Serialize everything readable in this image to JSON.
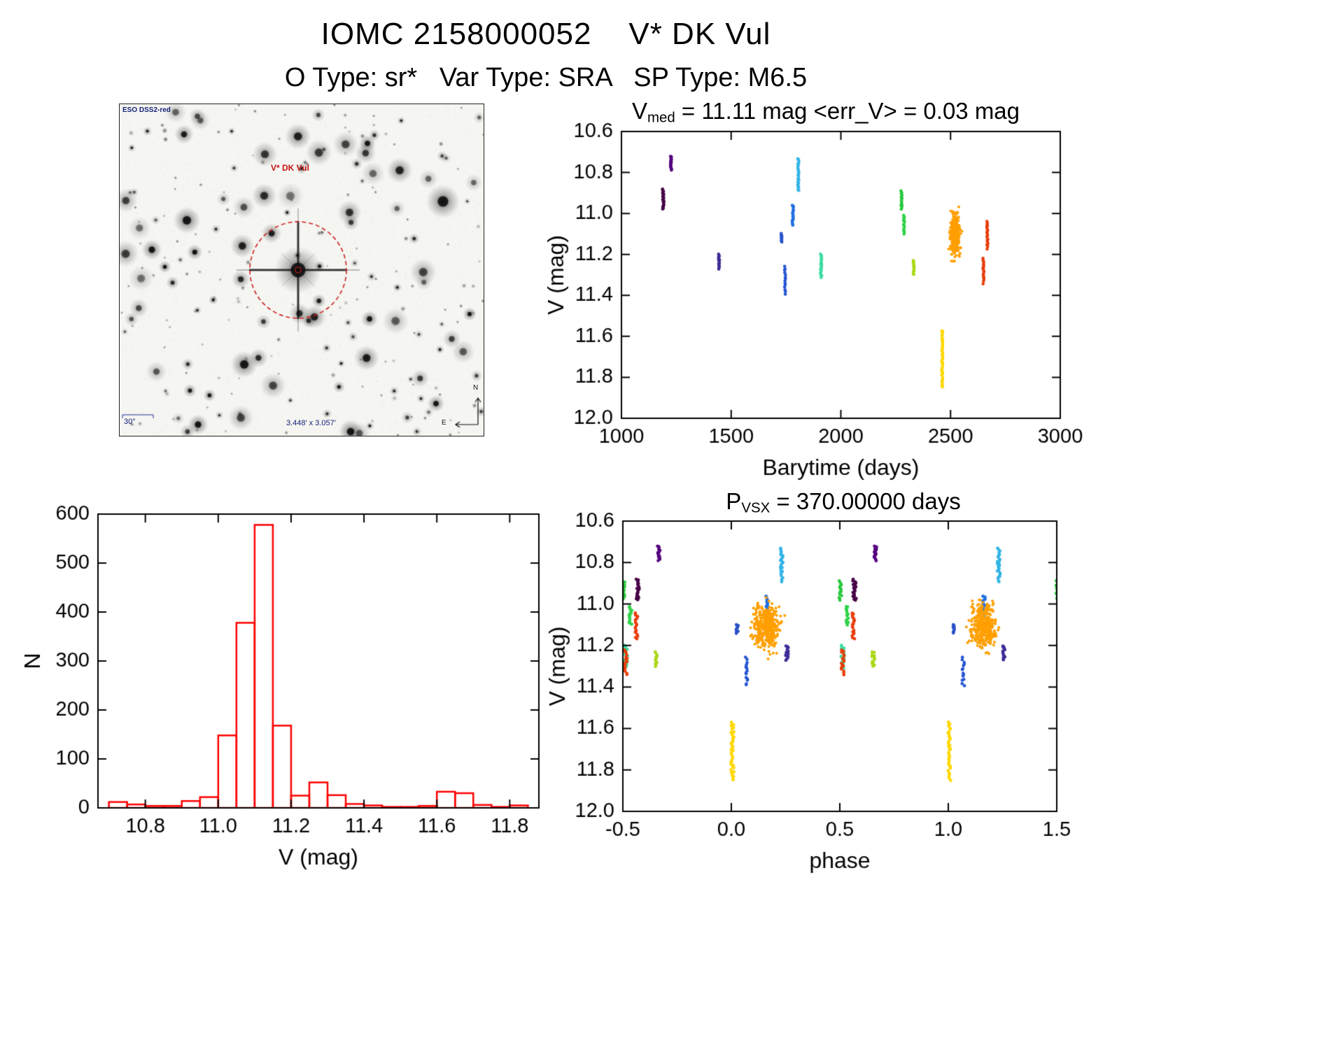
{
  "header": {
    "title": "IOMC 2158000052    V* DK Vul",
    "subtitle": "O Type: sr*   Var Type: SRA   SP Type: M6.5"
  },
  "finder": {
    "survey_label": "ESO DSS2-red",
    "target_label": "V* DK Vul",
    "scale_label": "30″",
    "fov_label": "3.448′ x 3.057′",
    "compass_north": "N",
    "compass_east": "E",
    "marker_color": "#cc2020"
  },
  "chart_data": [
    {
      "id": "lightcurve",
      "type": "scatter",
      "title_segments": [
        {
          "t": "V"
        },
        {
          "t": "med",
          "sub": true
        },
        {
          "t": " = 11.11 mag <err_V> = 0.03 mag"
        }
      ],
      "xlabel": "Barytime (days)",
      "ylabel": "V (mag)",
      "xlim": [
        1000,
        3000
      ],
      "ylim": [
        12.0,
        10.6
      ],
      "xtick_vals": [
        1000,
        1500,
        2000,
        2500,
        3000
      ],
      "xtick_labels": [
        "1000",
        "1500",
        "2000",
        "2500",
        "3000"
      ],
      "ytick_vals": [
        10.6,
        10.8,
        11.0,
        11.2,
        11.4,
        11.6,
        11.8,
        12.0
      ],
      "ytick_labels": [
        "10.6",
        "10.8",
        "11.0",
        "11.2",
        "11.4",
        "11.6",
        "11.8",
        "12.0"
      ],
      "clusters": [
        {
          "t": 1190,
          "mag": [
            10.88,
            10.98
          ],
          "n": 22,
          "w": 6,
          "color": "#460046"
        },
        {
          "t": 1226,
          "mag": [
            10.72,
            10.79
          ],
          "n": 16,
          "w": 5,
          "color": "#53007e"
        },
        {
          "t": 1445,
          "mag": [
            11.2,
            11.27
          ],
          "n": 14,
          "w": 5,
          "color": "#3c2c96"
        },
        {
          "t": 1730,
          "mag": [
            11.1,
            11.14
          ],
          "n": 9,
          "w": 4,
          "color": "#2850c8"
        },
        {
          "t": 1746,
          "mag": [
            11.26,
            11.39
          ],
          "n": 14,
          "w": 5,
          "color": "#2454d2"
        },
        {
          "t": 1781,
          "mag": [
            10.96,
            11.06
          ],
          "n": 16,
          "w": 5,
          "color": "#1e6ee0"
        },
        {
          "t": 1806,
          "mag": [
            10.73,
            10.89
          ],
          "n": 26,
          "w": 5,
          "color": "#33b4e6"
        },
        {
          "t": 1910,
          "mag": [
            11.2,
            11.31
          ],
          "n": 20,
          "w": 6,
          "color": "#3cdca0"
        },
        {
          "t": 2276,
          "mag": [
            10.89,
            10.98
          ],
          "n": 16,
          "w": 5,
          "color": "#28c83c"
        },
        {
          "t": 2288,
          "mag": [
            11.01,
            11.1
          ],
          "n": 14,
          "w": 5,
          "color": "#2ed246"
        },
        {
          "t": 2332,
          "mag": [
            11.23,
            11.3
          ],
          "n": 12,
          "w": 5,
          "color": "#aad714"
        },
        {
          "t": 2462,
          "mag": [
            11.57,
            11.85
          ],
          "n": 40,
          "w": 5,
          "color": "#ffd700"
        },
        {
          "t": 2520,
          "mag": [
            10.99,
            11.22
          ],
          "n": 380,
          "w": 22,
          "dist": "gauss",
          "color": "#ff9f00"
        },
        {
          "t": 2668,
          "mag": [
            11.04,
            11.17
          ],
          "n": 18,
          "w": 5,
          "color": "#e83c0a"
        },
        {
          "t": 2650,
          "mag": [
            11.22,
            11.34
          ],
          "n": 16,
          "w": 5,
          "color": "#e83c0a"
        }
      ]
    },
    {
      "id": "histogram",
      "type": "bar",
      "xlabel": "V (mag)",
      "ylabel": "N",
      "xlim": [
        10.67,
        11.88
      ],
      "ylim": [
        0,
        600
      ],
      "xtick_vals": [
        10.8,
        11.0,
        11.2,
        11.4,
        11.6,
        11.8
      ],
      "xtick_labels": [
        "10.8",
        "11.0",
        "11.2",
        "11.4",
        "11.6",
        "11.8"
      ],
      "ytick_vals": [
        0,
        100,
        200,
        300,
        400,
        500,
        600
      ],
      "ytick_labels": [
        "0",
        "100",
        "200",
        "300",
        "400",
        "500",
        "600"
      ],
      "bar_color": "#ff0000",
      "bin_width": 0.05,
      "bin_left_edges": [
        10.7,
        10.75,
        10.8,
        10.85,
        10.9,
        10.95,
        11.0,
        11.05,
        11.1,
        11.15,
        11.2,
        11.25,
        11.3,
        11.35,
        11.4,
        11.45,
        11.5,
        11.55,
        11.6,
        11.65,
        11.7,
        11.75,
        11.8
      ],
      "counts": [
        12,
        7,
        4,
        4,
        14,
        22,
        148,
        378,
        578,
        168,
        25,
        52,
        26,
        8,
        5,
        2,
        2,
        4,
        33,
        30,
        6,
        2,
        5
      ]
    },
    {
      "id": "phase",
      "type": "scatter",
      "title_segments": [
        {
          "t": "P"
        },
        {
          "t": "VSX",
          "sub": true
        },
        {
          "t": " = 370.00000 days"
        }
      ],
      "xlabel": "phase",
      "ylabel": "V (mag)",
      "xlim": [
        -0.5,
        1.5
      ],
      "ylim": [
        12.0,
        10.6
      ],
      "xtick_vals": [
        -0.5,
        0.0,
        0.5,
        1.0,
        1.5
      ],
      "xtick_labels": [
        "-0.5",
        "0.0",
        "0.5",
        "1.0",
        "1.5"
      ],
      "ytick_vals": [
        10.6,
        10.8,
        11.0,
        11.2,
        11.4,
        11.6,
        11.8,
        12.0
      ],
      "ytick_labels": [
        "10.6",
        "10.8",
        "11.0",
        "11.2",
        "11.4",
        "11.6",
        "11.8",
        "12.0"
      ],
      "period_days": 370,
      "epoch_t0": 980,
      "clusters_from": "lightcurve"
    }
  ]
}
